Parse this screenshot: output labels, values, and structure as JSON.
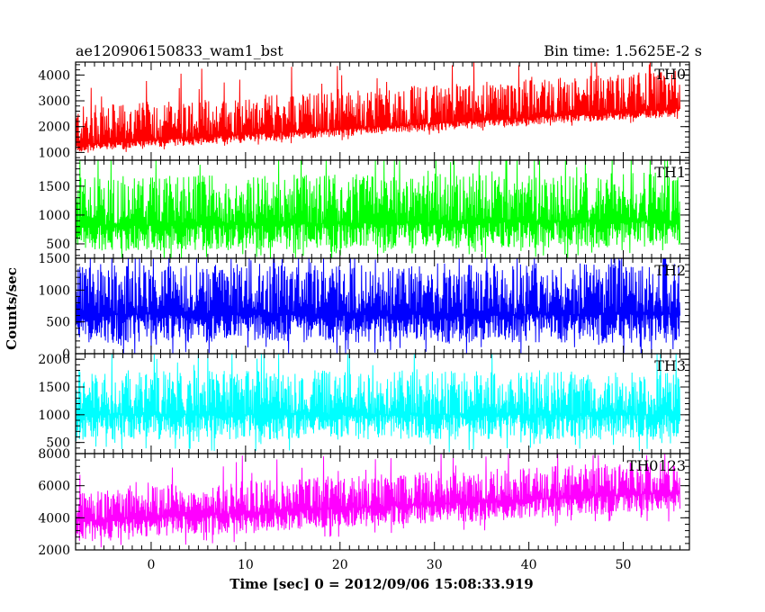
{
  "title_left": "ae120906150833_wam1_bst",
  "title_right": "Bin time: 1.5625E-2 s",
  "chart_data": {
    "type": "line",
    "xlabel": "Time [sec] 0 = 2012/09/06 15:08:33.919",
    "ylabel": "Counts/sec",
    "xlim": [
      -8,
      57
    ],
    "x_range_data": [
      -8,
      56
    ],
    "x_ticks": [
      0,
      10,
      20,
      30,
      40,
      50
    ],
    "panels": [
      {
        "name": "TH0",
        "color": "#ff0000",
        "ylim": [
          700,
          4500
        ],
        "y_ticks": [
          1000,
          2000,
          3000,
          4000
        ],
        "trend": {
          "start": 1300,
          "end": 2700
        },
        "low": 300,
        "high": 1500,
        "lo_clip": 700,
        "hi_clip": 4500
      },
      {
        "name": "TH1",
        "color": "#00ff00",
        "ylim": [
          250,
          1950
        ],
        "y_ticks": [
          500,
          1000,
          1500
        ],
        "trend": {
          "start": 820,
          "end": 900
        },
        "low": 450,
        "high": 850,
        "lo_clip": 250,
        "hi_clip": 1950
      },
      {
        "name": "TH2",
        "color": "#0000ff",
        "ylim": [
          0,
          1500
        ],
        "y_ticks": [
          0,
          500,
          1000,
          1500
        ],
        "trend": {
          "start": 620,
          "end": 620
        },
        "low": 450,
        "high": 800,
        "lo_clip": 0,
        "hi_clip": 1500
      },
      {
        "name": "TH3",
        "color": "#00ffff",
        "ylim": [
          300,
          2100
        ],
        "y_ticks": [
          500,
          1000,
          1500,
          2000
        ],
        "trend": {
          "start": 1000,
          "end": 1000
        },
        "low": 450,
        "high": 800,
        "lo_clip": 300,
        "hi_clip": 2100
      },
      {
        "name": "TH0123",
        "color": "#ff00ff",
        "ylim": [
          2000,
          8000
        ],
        "y_ticks": [
          2000,
          4000,
          6000,
          8000
        ],
        "trend": {
          "start": 3800,
          "end": 5600
        },
        "low": 1200,
        "high": 2000,
        "lo_clip": 2000,
        "hi_clip": 8000
      }
    ]
  }
}
